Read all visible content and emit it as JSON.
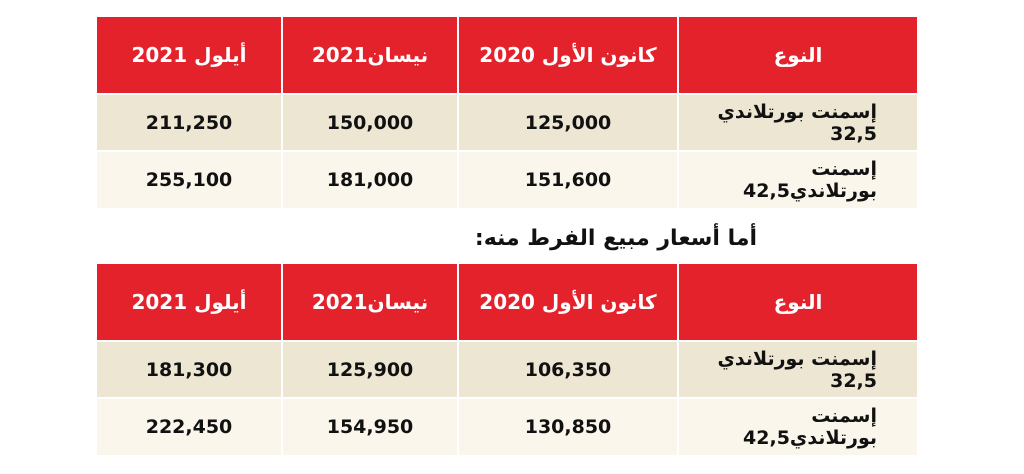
{
  "headers": {
    "type": "النوع",
    "dec_2020": "كانون الأول 2020",
    "apr_2021": "نيسان2021",
    "sep_2021": "أيلول 2021"
  },
  "wholesale": {
    "rows": [
      {
        "type": "إسمنت بورتلاندي 32,5",
        "dec_2020": "125,000",
        "apr_2021": "150,000",
        "sep_2021": "211,250"
      },
      {
        "type": "إسمنت بورتلاندي42,5",
        "dec_2020": "151,600",
        "apr_2021": "181,000",
        "sep_2021": "255,100"
      }
    ]
  },
  "retail_heading": "أما أسعار مبيع الفرط منه:",
  "retail": {
    "rows": [
      {
        "type": "إسمنت بورتلاندي 32,5",
        "dec_2020": "106,350",
        "apr_2021": "125,900",
        "sep_2021": "181,300"
      },
      {
        "type": "إسمنت بورتلاندي42,5",
        "dec_2020": "130,850",
        "apr_2021": "154,950",
        "sep_2021": "222,450"
      }
    ]
  },
  "colors": {
    "header_red": "#e3222b",
    "row_odd": "#ece6d3",
    "row_even": "#faf6ec"
  }
}
